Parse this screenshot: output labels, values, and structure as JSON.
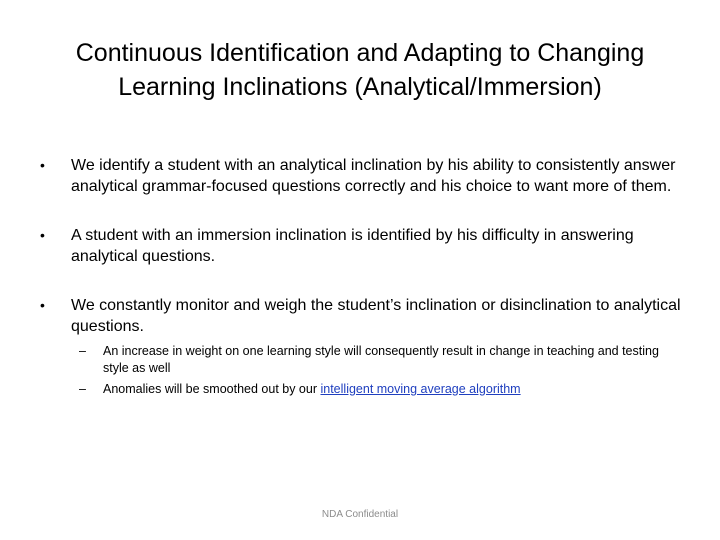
{
  "slide": {
    "title": "Continuous Identification and Adapting to Changing Learning Inclinations (Analytical/Immersion)",
    "bullet_symbol": "•",
    "dash_symbol": "–",
    "bullets": [
      {
        "text": "We identify a student with an analytical inclination by his ability to consistently answer analytical grammar-focused questions correctly and his choice to want more of them."
      },
      {
        "text": "A student with an immersion inclination is identified by his difficulty in answering analytical questions."
      },
      {
        "text": "We constantly monitor and weigh the student’s inclination or disinclination to analytical questions.",
        "sub": [
          {
            "text": "An increase in weight on one learning style will consequently result in change in teaching and testing style as well"
          },
          {
            "text_prefix": "Anomalies will be smoothed out by our ",
            "link": "intelligent moving average algorithm"
          }
        ]
      }
    ],
    "footer": "NDA Confidential",
    "link_color": "#1f3fbf"
  }
}
